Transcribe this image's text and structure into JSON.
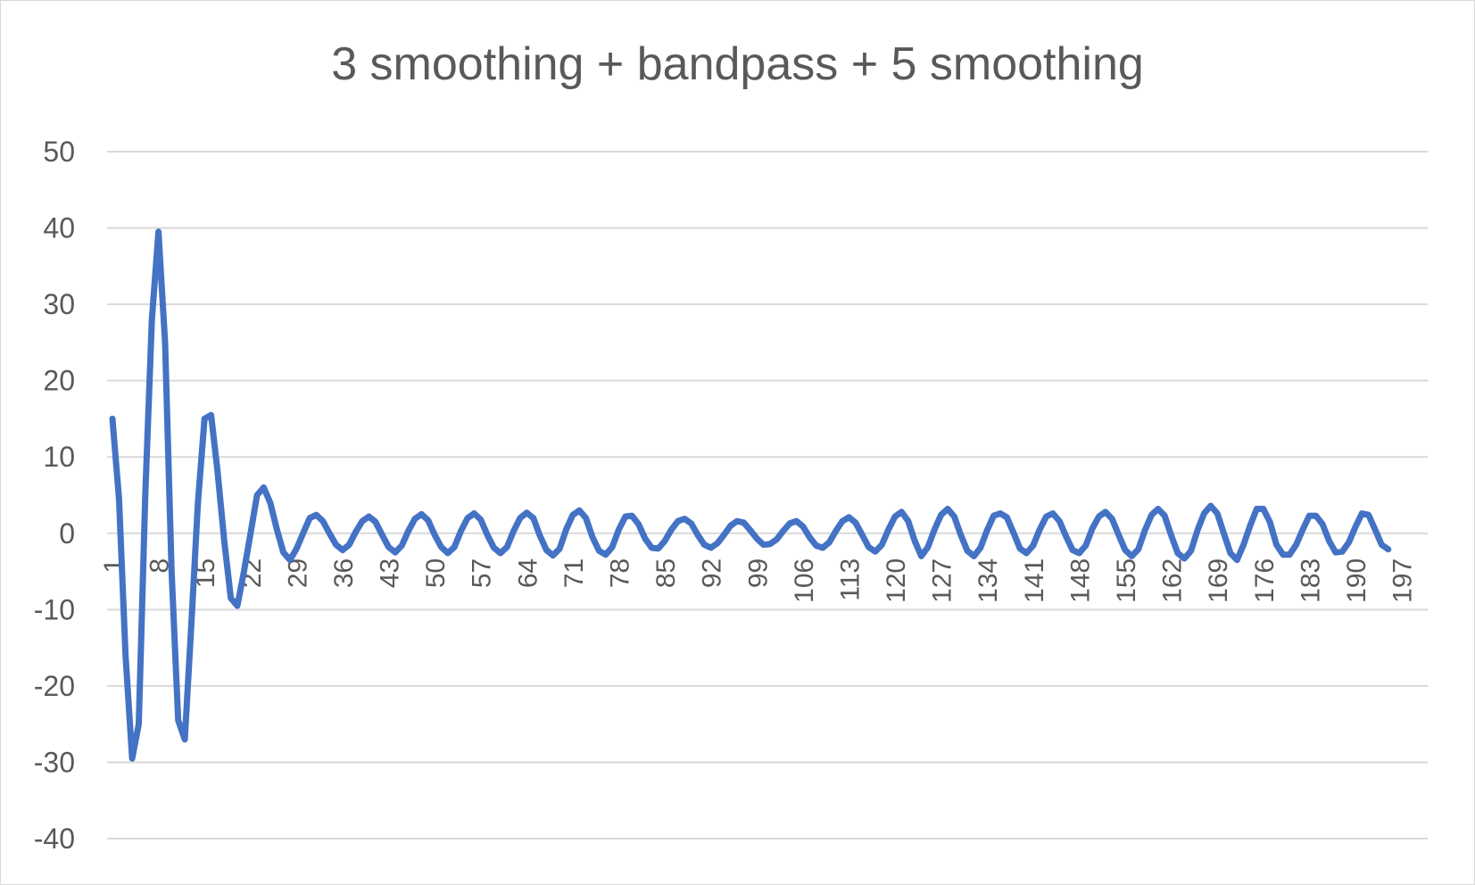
{
  "chart_data": {
    "type": "line",
    "title": "3 smoothing + bandpass + 5 smoothing",
    "xlabel": "",
    "ylabel": "",
    "ylim": [
      -40,
      50
    ],
    "y_ticks": [
      50,
      40,
      30,
      20,
      10,
      0,
      -10,
      -20,
      -30,
      -40
    ],
    "x_tick_labels": [
      1,
      8,
      15,
      22,
      29,
      36,
      43,
      50,
      57,
      64,
      71,
      78,
      85,
      92,
      99,
      106,
      113,
      120,
      127,
      134,
      141,
      148,
      155,
      162,
      169,
      176,
      183,
      190,
      197
    ],
    "x_range": [
      1,
      201
    ],
    "grid": true,
    "legend": "none",
    "series_color": "#4472c4",
    "series": [
      {
        "values": [
          15,
          4.5,
          -16,
          -29.5,
          -25,
          5,
          28,
          39.5,
          25,
          -5,
          -24.5,
          -27,
          -12,
          4,
          15,
          15.5,
          8,
          -1,
          -8.5,
          -9.5,
          -5,
          0,
          5,
          6,
          4,
          0.5,
          -2.5,
          -3.5,
          -2,
          0,
          2,
          2.4,
          1.6,
          0,
          -1.5,
          -2.2,
          -1.5,
          0.2,
          1.6,
          2.2,
          1.5,
          -0.2,
          -1.8,
          -2.5,
          -1.6,
          0.3,
          1.9,
          2.5,
          1.7,
          -0.2,
          -1.8,
          -2.6,
          -1.8,
          0.3,
          2.0,
          2.6,
          1.8,
          -0.2,
          -1.9,
          -2.6,
          -1.8,
          0.3,
          2.0,
          2.7,
          2.0,
          -0.3,
          -2.2,
          -2.9,
          -2.0,
          0.5,
          2.4,
          3.0,
          2.0,
          -0.5,
          -2.3,
          -2.8,
          -1.8,
          0.5,
          2.2,
          2.3,
          1.2,
          -0.7,
          -1.9,
          -2.0,
          -1.0,
          0.5,
          1.6,
          1.9,
          1.3,
          -0.2,
          -1.5,
          -1.9,
          -1.3,
          -0.2,
          1.0,
          1.6,
          1.4,
          0.4,
          -0.7,
          -1.5,
          -1.4,
          -0.8,
          0.3,
          1.3,
          1.6,
          0.9,
          -0.5,
          -1.6,
          -1.9,
          -1.2,
          0.3,
          1.6,
          2.1,
          1.4,
          -0.2,
          -1.8,
          -2.4,
          -1.5,
          0.5,
          2.2,
          2.8,
          1.6,
          -1.0,
          -3.0,
          -1.8,
          0.5,
          2.4,
          3.2,
          2.2,
          -0.2,
          -2.3,
          -3.0,
          -1.9,
          0.4,
          2.3,
          2.6,
          2.1,
          0.1,
          -2.0,
          -2.6,
          -1.6,
          0.5,
          2.2,
          2.6,
          1.6,
          -0.4,
          -2.2,
          -2.6,
          -1.6,
          0.6,
          2.2,
          2.8,
          1.9,
          -0.2,
          -2.2,
          -3.0,
          -2.1,
          0.4,
          2.4,
          3.2,
          2.3,
          -0.3,
          -2.6,
          -3.3,
          -2.3,
          0.4,
          2.6,
          3.6,
          2.6,
          0.0,
          -2.6,
          -3.5,
          -1.5,
          1.0,
          3.2,
          3.2,
          1.5,
          -1.5,
          -2.8,
          -2.8,
          -1.5,
          0.5,
          2.3,
          2.3,
          1.2,
          -1.0,
          -2.5,
          -2.4,
          -1.2,
          0.8,
          2.6,
          2.4,
          0.5,
          -1.5,
          -2.1
        ]
      }
    ]
  }
}
